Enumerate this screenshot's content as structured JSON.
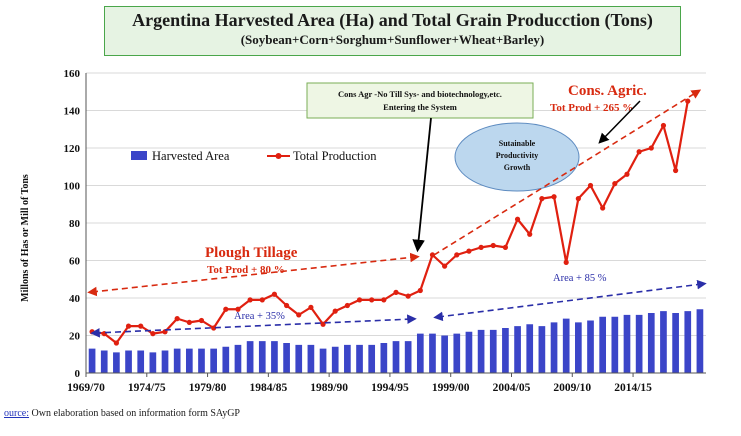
{
  "title": "Argentina Harvested Area (Ha) and Total Grain Producction (Tons)",
  "subtitle": "(Soybean+Corn+Sorghum+Sunflower+Wheat+Barley)",
  "source_label": "ource:",
  "source_text": "Own elaboration based on information form SAyGP",
  "colors": {
    "bar": "#3b45c8",
    "line": "#e02010",
    "annotation_red": "#d82a10",
    "annotation_blue": "#2a2ea8",
    "ellipse": "#bcd7ee"
  },
  "annotations": {
    "cons_agr_box": [
      "Cons Agr -No Till Sys- and biotechnology,etc.",
      "Entering the System"
    ],
    "cons_agric_title": "Cons. Agric.",
    "cons_agric_prod": "Tot Prod + 265 %",
    "ellipse": [
      "Sutainable",
      "Productivity",
      "Growth"
    ],
    "plough_title": "Plough Tillage",
    "plough_prod": "Tot Prod + 80 %",
    "area_early": "Area + 35%",
    "area_late": "Area  + 85 %"
  },
  "chart_data": {
    "type": "bar",
    "title": "Argentina Harvested Area (Ha) and Total Grain Producction (Tons)",
    "subtitle": "(Soybean+Corn+Sorghum+Sunflower+Wheat+Barley)",
    "ylabel": "Millons of Has or Mill of Tons",
    "xlabel": "",
    "ylim": [
      0,
      160
    ],
    "yticks": [
      0,
      20,
      40,
      60,
      80,
      100,
      120,
      140,
      160
    ],
    "xtick_labels": [
      "1969/70",
      "1974/75",
      "1979/80",
      "1984/85",
      "1989/90",
      "1994/95",
      "1999/00",
      "2004/05",
      "2009/10",
      "2014/15"
    ],
    "xtick_indices": [
      0,
      5,
      10,
      15,
      20,
      25,
      30,
      35,
      40,
      45
    ],
    "grid": "horizontal",
    "legend_position": "upper-left",
    "series": [
      {
        "name": "Harvested Area",
        "type": "bar",
        "values": [
          13,
          12,
          11,
          12,
          12,
          11,
          12,
          13,
          13,
          13,
          13,
          14,
          15,
          17,
          17,
          17,
          16,
          15,
          15,
          13,
          14,
          15,
          15,
          15,
          16,
          17,
          17,
          21,
          21,
          20,
          21,
          22,
          23,
          23,
          24,
          25,
          26,
          25,
          27,
          29,
          27,
          28,
          30,
          30,
          31,
          31,
          32,
          33,
          32,
          33,
          34
        ]
      },
      {
        "name": "Total Production",
        "type": "line",
        "values": [
          22,
          21,
          16,
          25,
          25,
          21,
          22,
          29,
          27,
          28,
          24,
          34,
          34,
          39,
          39,
          42,
          36,
          31,
          35,
          26,
          33,
          36,
          39,
          39,
          39,
          43,
          41,
          44,
          63,
          57,
          63,
          65,
          67,
          68,
          67,
          82,
          74,
          93,
          94,
          59,
          93,
          100,
          88,
          101,
          106,
          118,
          120,
          132,
          108,
          145
        ]
      }
    ]
  }
}
